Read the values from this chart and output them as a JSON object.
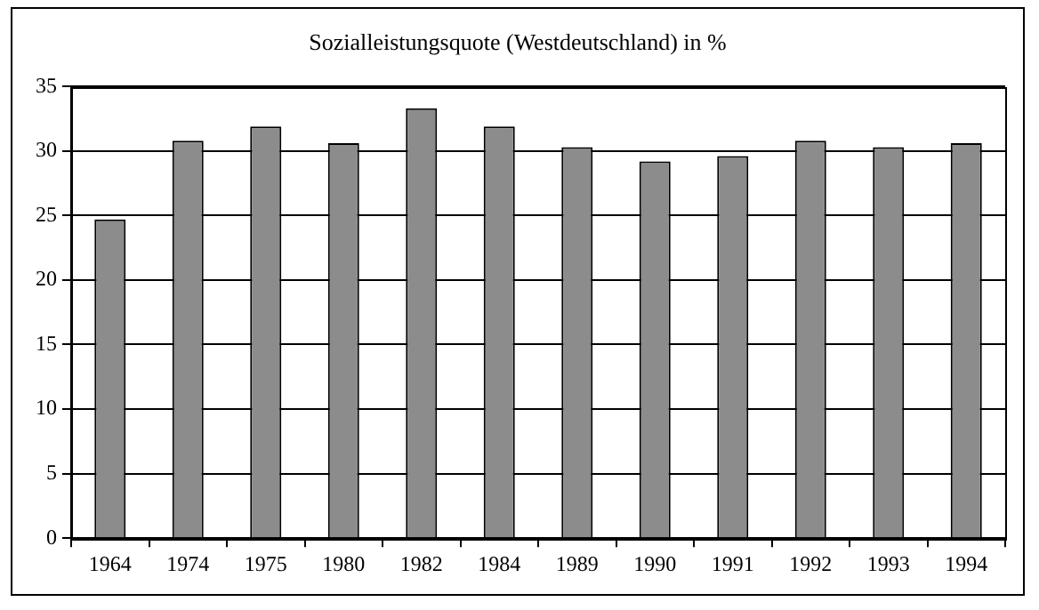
{
  "chart_data": {
    "type": "bar",
    "title": "Sozialleistungsquote (Westdeutschland) in %",
    "categories": [
      "1964",
      "1974",
      "1975",
      "1980",
      "1982",
      "1984",
      "1989",
      "1990",
      "1991",
      "1992",
      "1993",
      "1994"
    ],
    "values": [
      24.7,
      30.8,
      31.9,
      30.6,
      33.3,
      31.9,
      30.3,
      29.2,
      29.6,
      30.8,
      30.3,
      30.6
    ],
    "color": "#8c8c8c",
    "ylim": [
      0,
      35
    ],
    "yticks": [
      0,
      5,
      10,
      15,
      20,
      25,
      30,
      35
    ],
    "grid": "y",
    "legend": false
  }
}
